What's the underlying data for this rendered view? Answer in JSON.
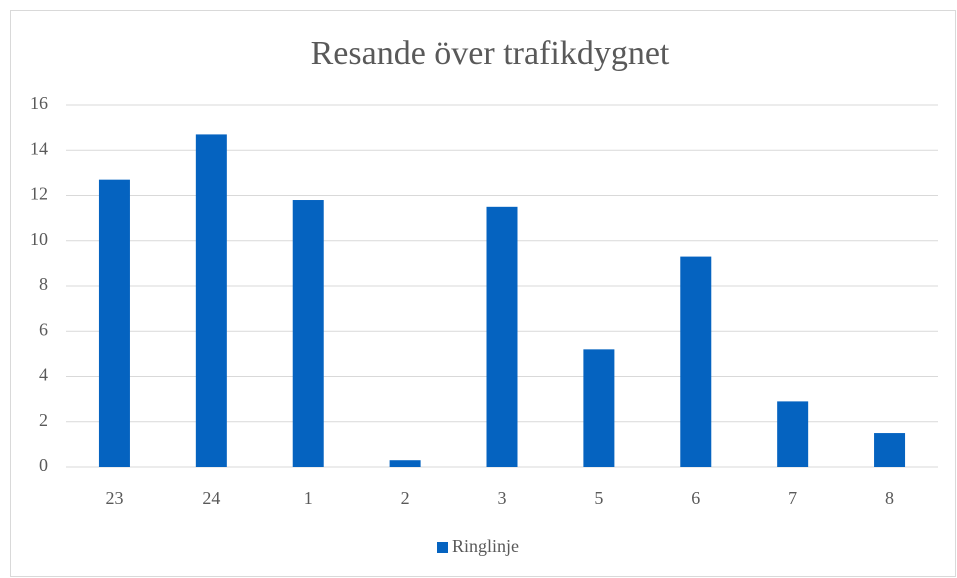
{
  "chart_data": {
    "type": "bar",
    "title": "Resande över trafikdygnet",
    "categories": [
      "23",
      "24",
      "1",
      "2",
      "3",
      "5",
      "6",
      "7",
      "8"
    ],
    "series": [
      {
        "name": "Ringlinje",
        "color": "#0563c0",
        "values": [
          12.7,
          14.7,
          11.8,
          0.3,
          11.5,
          5.2,
          9.3,
          2.9,
          1.5
        ]
      }
    ],
    "ylim": [
      0,
      16
    ],
    "yticks": [
      0,
      2,
      4,
      6,
      8,
      10,
      12,
      14,
      16
    ],
    "grid": true,
    "legend": "bottom"
  }
}
